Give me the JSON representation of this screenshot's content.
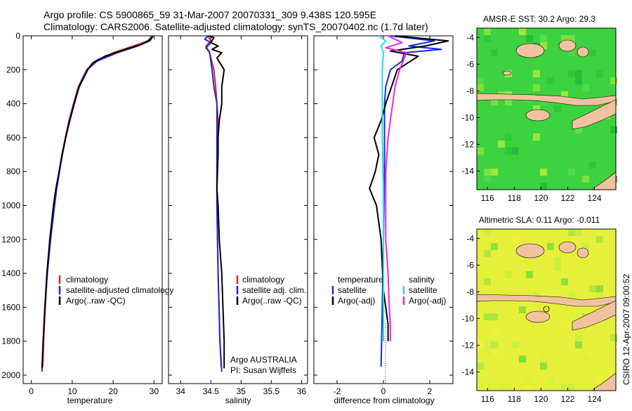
{
  "header": {
    "line1": "Argo profile: CS 5900865_59 31-Mar-2007 20070331_309 9.438S 120.595E",
    "line2": "Climatology: CARS2006. Satellite-adjusted climatology: synTS_20070402.nc (1.7d later)"
  },
  "colors": {
    "red": "#dd2222",
    "blue": "#1a2bd6",
    "black": "#000000",
    "cyan": "#22dddd",
    "magenta": "#ee22ee",
    "land": "#f2c2a0",
    "sea_green": "#3cd240",
    "sea_yellow": "#e6f03a"
  },
  "chart_data": [
    {
      "type": "line",
      "id": "temperature",
      "xlabel": "temperature",
      "ylabel": "",
      "xlim": [
        -2,
        32
      ],
      "ylim": [
        2050,
        0
      ],
      "xticks": [
        0,
        10,
        20,
        30
      ],
      "yticks": [
        0,
        200,
        400,
        600,
        800,
        1000,
        1200,
        1400,
        1600,
        1800,
        2000
      ],
      "legend": [
        "climatology",
        "satellite-adjusted climatology",
        "Argo(..raw -QC)"
      ],
      "series": [
        {
          "name": "climatology",
          "color": "red",
          "depth": [
            0,
            30,
            60,
            100,
            150,
            200,
            300,
            400,
            500,
            600,
            700,
            800,
            900,
            1000,
            1200,
            1400,
            1600,
            1800,
            1950
          ],
          "values": [
            29.5,
            28.5,
            25,
            20,
            15.5,
            13.5,
            11.5,
            10.3,
            9.2,
            8.3,
            7.5,
            6.8,
            6.1,
            5.6,
            4.7,
            3.9,
            3.4,
            3.0,
            2.8
          ]
        },
        {
          "name": "satellite-adjusted climatology",
          "color": "blue",
          "depth": [
            0,
            30,
            60,
            100,
            150,
            200,
            300,
            400,
            500,
            600,
            700,
            800,
            900,
            1000,
            1200,
            1400,
            1600,
            1800,
            1980
          ],
          "values": [
            29.8,
            29.0,
            26,
            21,
            16,
            13.7,
            11.6,
            10.4,
            9.3,
            8.4,
            7.6,
            6.9,
            6.2,
            5.7,
            4.7,
            3.9,
            3.3,
            2.9,
            2.6
          ]
        },
        {
          "name": "Argo(..raw -QC)",
          "color": "black",
          "depth": [
            0,
            20,
            50,
            80,
            120,
            160,
            200,
            300,
            400,
            500,
            600,
            700,
            800,
            900,
            1000,
            1200,
            1400,
            1600,
            1800,
            1960
          ],
          "values": [
            29.6,
            29.2,
            27,
            23,
            18,
            15,
            13.8,
            11.7,
            10.5,
            9.4,
            8.4,
            7.5,
            6.8,
            6.0,
            5.4,
            4.5,
            3.8,
            3.3,
            2.9,
            2.6
          ]
        }
      ]
    },
    {
      "type": "line",
      "id": "salinity",
      "xlabel": "salinity",
      "ylabel": "",
      "xlim": [
        33.8,
        36.1
      ],
      "ylim": [
        2050,
        0
      ],
      "xticks": [
        34,
        34.5,
        35,
        35.5,
        36
      ],
      "legend": [
        "climatology",
        "satellite adj. clim.",
        "Argo(..raw -QC)"
      ],
      "annotation": [
        "Argo AUSTRALIA",
        "PI: Susan Wijffels"
      ],
      "series": [
        {
          "name": "climatology",
          "color": "red",
          "depth": [
            0,
            30,
            60,
            100,
            200,
            300,
            400,
            500,
            700,
            1000,
            1400,
            1800,
            1950
          ],
          "values": [
            34.45,
            34.5,
            34.42,
            34.48,
            34.55,
            34.58,
            34.6,
            34.62,
            34.6,
            34.6,
            34.62,
            34.65,
            34.67
          ]
        },
        {
          "name": "satellite adj. clim.",
          "color": "blue",
          "depth": [
            0,
            20,
            40,
            70,
            100,
            200,
            300,
            400,
            500,
            700,
            1000,
            1400,
            1800,
            1980
          ],
          "values": [
            34.45,
            34.4,
            34.5,
            34.42,
            34.48,
            34.52,
            34.55,
            34.6,
            34.6,
            34.6,
            34.6,
            34.62,
            34.65,
            34.68
          ]
        },
        {
          "name": "Argo(..raw -QC)",
          "color": "black",
          "depth": [
            0,
            10,
            40,
            60,
            80,
            100,
            130,
            200,
            300,
            400,
            500,
            600,
            700,
            900,
            1000,
            1200,
            1400,
            1600,
            1800,
            1960
          ],
          "values": [
            34.45,
            34.55,
            34.5,
            34.62,
            34.52,
            34.68,
            34.6,
            34.72,
            34.68,
            34.68,
            34.64,
            34.62,
            34.62,
            34.6,
            34.62,
            34.64,
            34.68,
            34.7,
            34.72,
            34.72
          ]
        }
      ]
    },
    {
      "type": "line",
      "id": "difference",
      "xlabel": "difference from climatology",
      "ylabel": "",
      "xlim": [
        -3,
        3
      ],
      "ylim": [
        2050,
        0
      ],
      "xticks": [
        -2,
        0,
        2
      ],
      "legend_left_title": "temperature",
      "legend_left": [
        "satellite",
        "Argo(-adj)"
      ],
      "legend_right_title": "salinity",
      "legend_right": [
        "satellite",
        "Argo(-adj)"
      ],
      "series": [
        {
          "name": "temperature satellite",
          "color": "blue",
          "depth": [
            0,
            30,
            60,
            80,
            100,
            150,
            200,
            300,
            400,
            500,
            800,
            1200,
            1600,
            1950
          ],
          "values": [
            0.3,
            2.2,
            1.1,
            2.5,
            0.9,
            0.8,
            0.3,
            0.1,
            0.05,
            0.05,
            0.05,
            0.0,
            -0.05,
            -0.1
          ]
        },
        {
          "name": "temperature Argo(-adj)",
          "color": "black",
          "depth": [
            0,
            30,
            60,
            90,
            120,
            200,
            400,
            500,
            600,
            700,
            800,
            900,
            1000,
            1200,
            1500,
            1700,
            1800
          ],
          "values": [
            0.5,
            2.8,
            1.8,
            0.3,
            1.5,
            0.6,
            0.1,
            -0.1,
            -0.4,
            -0.2,
            -0.35,
            -0.6,
            -0.3,
            -0.1,
            0.0,
            0.2,
            0.2
          ]
        },
        {
          "name": "salinity satellite",
          "color": "cyan",
          "depth": [
            0,
            30,
            60,
            100,
            200,
            400,
            600,
            900,
            1200,
            1500,
            1800
          ],
          "values": [
            -0.2,
            0.1,
            -0.1,
            0.0,
            -0.05,
            -0.05,
            -0.05,
            0.0,
            0.0,
            0.0,
            0.0
          ]
        },
        {
          "name": "salinity Argo(-adj)",
          "color": "magenta",
          "depth": [
            0,
            40,
            70,
            100,
            200,
            300,
            400,
            600,
            800,
            1000,
            1200,
            1400,
            1600,
            1700,
            1800
          ],
          "values": [
            0.2,
            0.8,
            0.1,
            1.0,
            0.7,
            0.5,
            0.4,
            0.2,
            0.1,
            0.1,
            0.1,
            0.2,
            0.25,
            0.3,
            0.3
          ]
        }
      ]
    }
  ],
  "maps": [
    {
      "title": "AMSR-E SST: 30.2 Argo: 29.3",
      "xticks": [
        "116",
        "118",
        "120",
        "122",
        "124"
      ],
      "yticks": [
        "-4",
        "-6",
        "-8",
        "-10",
        "-12",
        "-14"
      ]
    },
    {
      "title": "Altimetric SLA: 0.11 Argo: -0.011",
      "xticks": [
        "116",
        "118",
        "120",
        "122",
        "124"
      ],
      "yticks": [
        "-4",
        "-6",
        "-8",
        "-10",
        "-12",
        "-14"
      ]
    }
  ],
  "footer": {
    "stamp": "CSIRO 12-Apr-2007 09:00:52"
  }
}
